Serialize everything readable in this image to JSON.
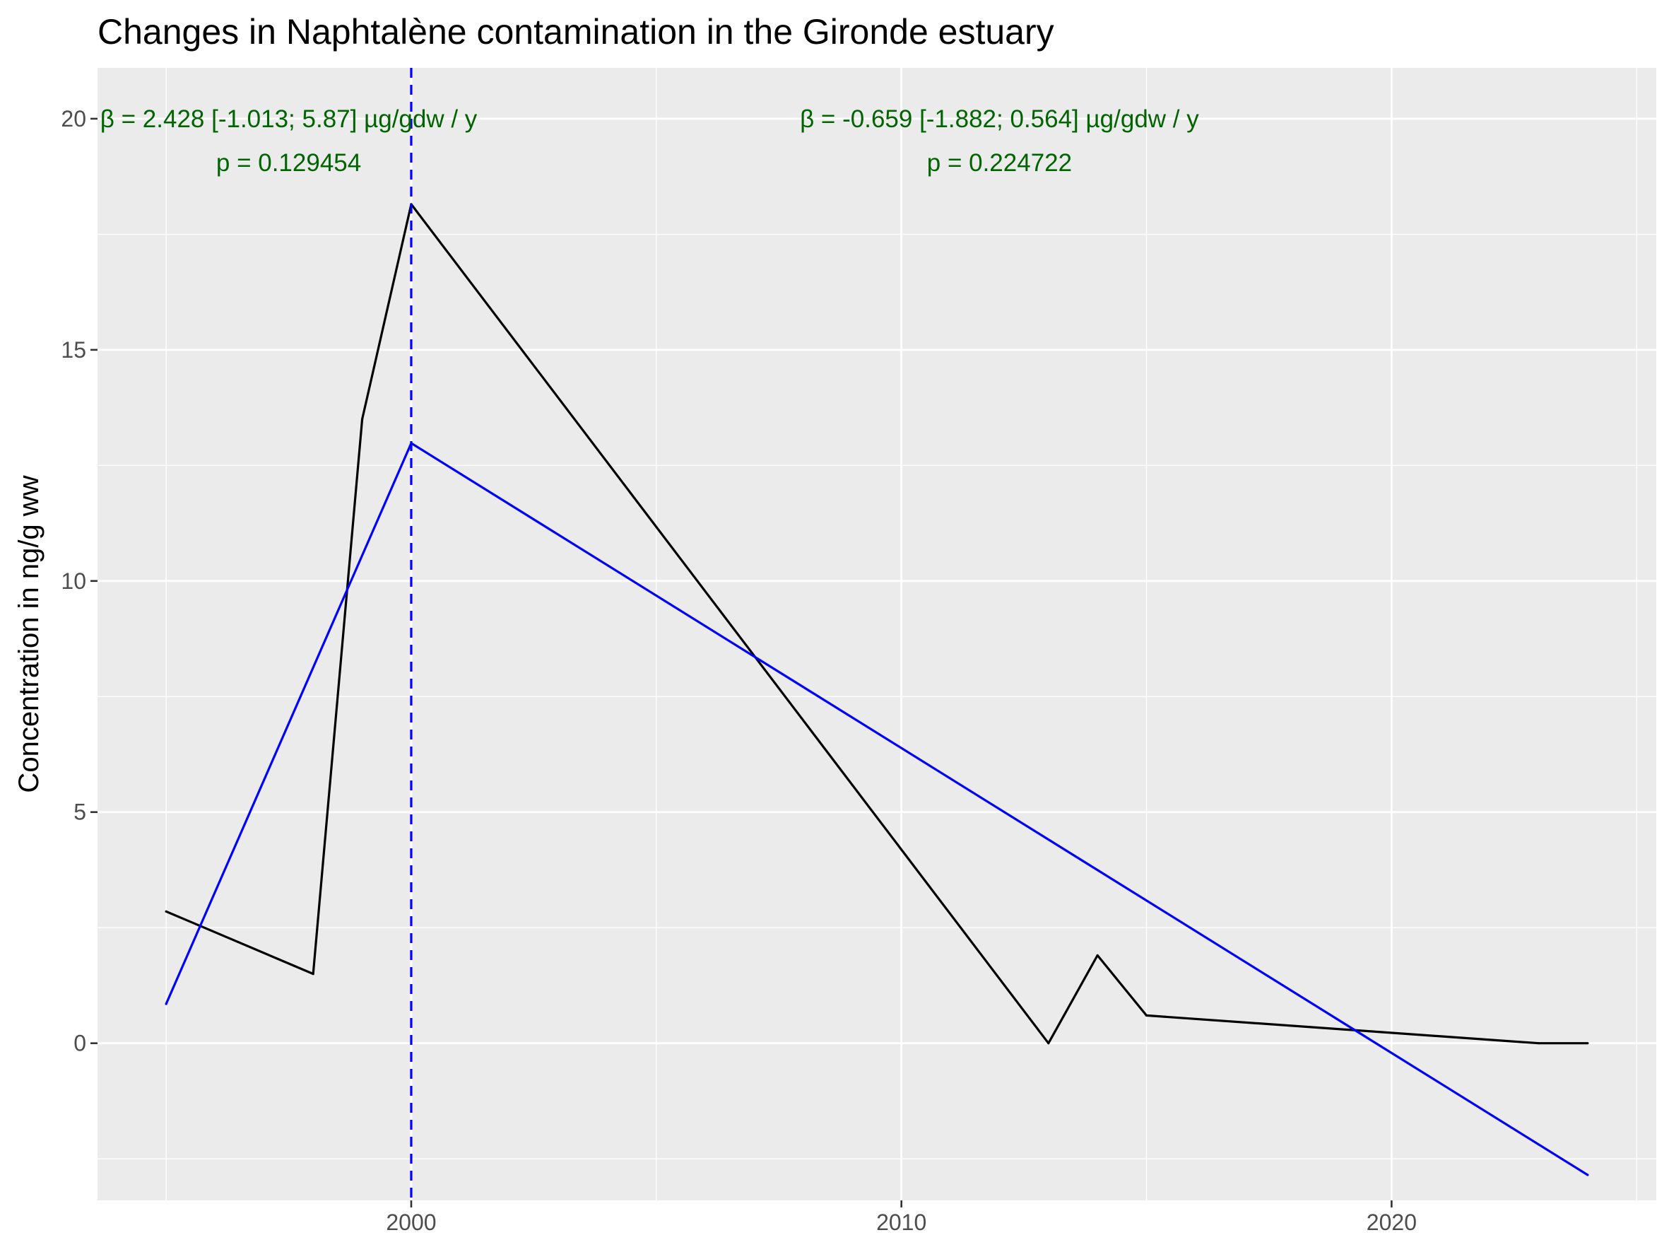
{
  "chart_data": {
    "type": "line",
    "title": "Changes in Naphtalène contamination in the Gironde estuary",
    "xlabel": "",
    "ylabel": "Concentration in ng/g ww",
    "xlim": [
      1993.6,
      2025.4
    ],
    "ylim": [
      -3.4,
      21.1
    ],
    "x_ticks": [
      2000,
      2010,
      2020
    ],
    "x_tick_labels": [
      "2000",
      "2010",
      "2020"
    ],
    "x_minor_ticks": [
      1995,
      2005,
      2015,
      2025
    ],
    "y_ticks": [
      0,
      5,
      10,
      15,
      20
    ],
    "y_tick_labels": [
      "0",
      "5",
      "10",
      "15",
      "20"
    ],
    "y_minor_ticks": [
      -2.5,
      2.5,
      7.5,
      12.5,
      17.5
    ],
    "grid": true,
    "series": [
      {
        "color": "#000000",
        "style": "solid",
        "x": [
          1995,
          1998,
          1999,
          2000,
          2013,
          2014,
          2015,
          2023,
          2024
        ],
        "y": [
          2.85,
          1.5,
          13.5,
          18.15,
          0.0,
          1.9,
          0.6,
          0.0,
          0.0
        ]
      },
      {
        "color": "#0000ff",
        "style": "solid",
        "x": [
          1995,
          2000,
          2024
        ],
        "y": [
          0.85,
          12.98,
          -2.85
        ]
      }
    ],
    "vlines": [
      {
        "x": 2000,
        "color": "#0000ff",
        "style": "dashed"
      }
    ],
    "annotations": [
      {
        "text": "β = 2.428 [-1.013; 5.87] µg/gdw / y",
        "x": 1997.5,
        "y": 20.0,
        "color": "#006400"
      },
      {
        "text": "p = 0.129454",
        "x": 1997.5,
        "y": 19.05,
        "color": "#006400"
      },
      {
        "text": "β = -0.659 [-1.882; 0.564] µg/gdw / y",
        "x": 2012.0,
        "y": 20.0,
        "color": "#006400"
      },
      {
        "text": "p = 0.224722",
        "x": 2012.0,
        "y": 19.05,
        "color": "#006400"
      }
    ]
  }
}
